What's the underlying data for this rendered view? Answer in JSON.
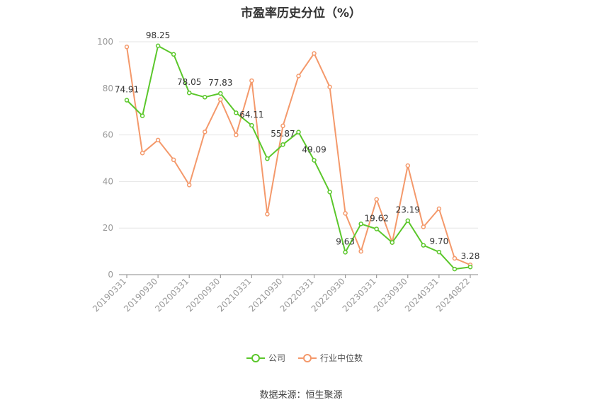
{
  "title": "市盈率历史分位（%）",
  "source": "数据来源：恒生聚源",
  "colors": {
    "company": "#5bc72b",
    "industry": "#f4996b",
    "grid": "#e6e6e6",
    "axis": "#888888"
  },
  "chart_data": {
    "type": "line",
    "title": "市盈率历史分位（%）",
    "xlabel": "",
    "ylabel": "",
    "ylim": [
      0,
      100
    ],
    "yticks": [
      0,
      20,
      40,
      60,
      80,
      100
    ],
    "grid": true,
    "legend_position": "bottom",
    "xtick_labels": [
      "20190331",
      "20190930",
      "20200331",
      "20200930",
      "20210331",
      "20210930",
      "20220331",
      "20220930",
      "20230331",
      "20230930",
      "20240331",
      "20240822"
    ],
    "x": [
      "20190331",
      "20190630",
      "20190930",
      "20191231",
      "20200331",
      "20200630",
      "20200930",
      "20201231",
      "20210331",
      "20210630",
      "20210930",
      "20211231",
      "20220331",
      "20220630",
      "20220930",
      "20221231",
      "20230331",
      "20230630",
      "20230930",
      "20231231",
      "20240331",
      "20240630",
      "20240822"
    ],
    "series": [
      {
        "name": "公司",
        "color": "#5bc72b",
        "values": [
          74.91,
          68.2,
          98.25,
          94.6,
          78.05,
          76.2,
          77.83,
          69.5,
          64.11,
          49.8,
          55.87,
          61.2,
          49.09,
          35.5,
          9.63,
          21.8,
          19.62,
          13.8,
          23.19,
          12.6,
          9.7,
          2.4,
          3.28
        ],
        "labels": [
          "74.91",
          "",
          "98.25",
          "",
          "78.05",
          "",
          "77.83",
          "",
          "64.11",
          "",
          "55.87",
          "",
          "49.09",
          "",
          "9.63",
          "",
          "19.62",
          "",
          "23.19",
          "",
          "9.70",
          "",
          "3.28"
        ]
      },
      {
        "name": "行业中位数",
        "color": "#f4996b",
        "values": [
          97.8,
          52.2,
          57.8,
          49.3,
          38.5,
          61.3,
          75.2,
          60.0,
          83.3,
          26.0,
          63.9,
          85.3,
          95.0,
          80.6,
          26.3,
          10.0,
          32.3,
          13.8,
          46.8,
          20.5,
          28.3,
          7.0,
          4.2
        ]
      }
    ]
  }
}
